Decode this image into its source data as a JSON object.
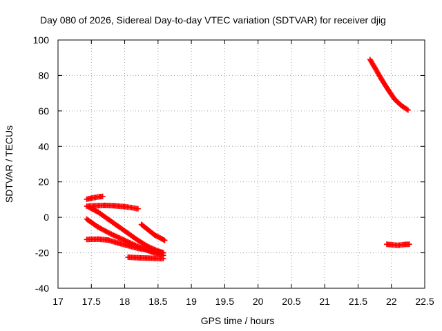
{
  "chart_data": {
    "type": "scatter",
    "title": "Day 080 of 2026, Sidereal Day-to-day VTEC variation (SDTVAR) for receiver djig",
    "xlabel": "GPS time / hours",
    "ylabel": "SDTVAR / TECUs",
    "xlim": [
      17,
      22.5
    ],
    "ylim": [
      -40,
      100
    ],
    "xticks": [
      17,
      17.5,
      18,
      18.5,
      19,
      19.5,
      20,
      20.5,
      21,
      21.5,
      22,
      22.5
    ],
    "xtick_labels": [
      "17",
      "17.5",
      "18",
      "18.5",
      "19",
      "19.5",
      "20",
      "20.5",
      "21",
      "21.5",
      "22",
      "22.5"
    ],
    "yticks": [
      -40,
      -20,
      0,
      20,
      40,
      60,
      80,
      100
    ],
    "ytick_labels": [
      "-40",
      "-20",
      "0",
      "20",
      "40",
      "60",
      "80",
      "100"
    ],
    "grid": true,
    "marker": "plus",
    "color": "#ff0000",
    "series": [
      {
        "points": [
          [
            17.43,
            10.2
          ],
          [
            17.5,
            10.8
          ],
          [
            17.56,
            11.2
          ],
          [
            17.62,
            11.6
          ],
          [
            17.67,
            11.8
          ]
        ]
      },
      {
        "points": [
          [
            17.43,
            6.3
          ],
          [
            17.55,
            6.5
          ],
          [
            17.7,
            6.7
          ],
          [
            17.85,
            6.5
          ],
          [
            18.0,
            6.0
          ],
          [
            18.1,
            5.5
          ],
          [
            18.2,
            4.8
          ]
        ]
      },
      {
        "points": [
          [
            17.45,
            6.0
          ],
          [
            17.6,
            3.0
          ],
          [
            17.75,
            -1.0
          ],
          [
            17.9,
            -5.0
          ],
          [
            18.05,
            -9.0
          ],
          [
            18.2,
            -13.0
          ],
          [
            18.35,
            -16.5
          ],
          [
            18.5,
            -19.0
          ],
          [
            18.58,
            -20.0
          ]
        ]
      },
      {
        "points": [
          [
            17.43,
            -1.0
          ],
          [
            17.6,
            -5.5
          ],
          [
            17.8,
            -9.5
          ],
          [
            18.0,
            -13.0
          ],
          [
            18.2,
            -16.5
          ],
          [
            18.4,
            -19.5
          ],
          [
            18.58,
            -21.5
          ]
        ]
      },
      {
        "points": [
          [
            17.43,
            -12.5
          ],
          [
            17.6,
            -12.3
          ],
          [
            17.75,
            -12.8
          ],
          [
            17.9,
            -14.5
          ],
          [
            18.05,
            -16.0
          ],
          [
            18.2,
            -17.5
          ],
          [
            18.35,
            -18.5
          ],
          [
            18.5,
            -19.5
          ],
          [
            18.58,
            -20.0
          ]
        ]
      },
      {
        "points": [
          [
            18.05,
            -22.5
          ],
          [
            18.2,
            -22.8
          ],
          [
            18.35,
            -23.0
          ],
          [
            18.5,
            -23.2
          ],
          [
            18.58,
            -23.3
          ]
        ]
      },
      {
        "points": [
          [
            18.25,
            -4.0
          ],
          [
            18.35,
            -7.0
          ],
          [
            18.45,
            -10.0
          ],
          [
            18.55,
            -12.0
          ],
          [
            18.6,
            -13.0
          ]
        ]
      },
      {
        "points": [
          [
            21.68,
            89.0
          ],
          [
            21.75,
            84.5
          ],
          [
            21.85,
            78.0
          ],
          [
            21.95,
            72.0
          ],
          [
            22.05,
            66.5
          ],
          [
            22.15,
            63.0
          ],
          [
            22.25,
            60.5
          ]
        ]
      },
      {
        "points": [
          [
            21.93,
            -15.2
          ],
          [
            22.0,
            -15.5
          ],
          [
            22.1,
            -15.8
          ],
          [
            22.2,
            -15.3
          ],
          [
            22.27,
            -15.2
          ]
        ]
      }
    ]
  }
}
